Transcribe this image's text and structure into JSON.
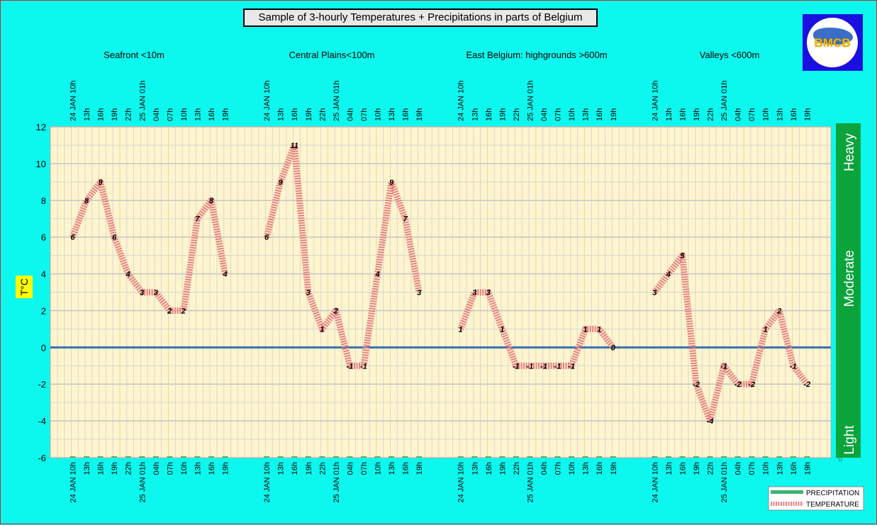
{
  "chart_data": {
    "type": "line",
    "title": "Sample of 3-hourly Temperatures + Precipitations in parts of Belgium",
    "ylabel": "T°C",
    "ylim": [
      -6,
      12
    ],
    "yticks": [
      -6,
      -4,
      -2,
      0,
      2,
      4,
      6,
      8,
      10,
      12
    ],
    "x_tick_labels": [
      "24 JAN 10h",
      "13h",
      "16h",
      "19h",
      "22h",
      "25 JAN 01h",
      "04h",
      "07h",
      "10h",
      "13h",
      "16h",
      "19h"
    ],
    "intensity_labels": [
      "Heavy",
      "Moderate",
      "Light"
    ],
    "intensity_axis_bottom_label": "0",
    "legend": {
      "position": "bottom-right",
      "entries": [
        "PRECIPITATION",
        "TEMPERATURE"
      ]
    },
    "groups": [
      {
        "label": "Seafront <10m",
        "temperature": [
          6,
          8,
          9,
          6,
          4,
          3,
          3,
          2,
          2,
          7,
          8,
          4
        ],
        "precipitation": [
          0,
          0,
          0,
          0,
          0,
          0,
          0,
          0,
          0,
          0,
          0,
          0
        ]
      },
      {
        "label": "Central Plains<100m",
        "temperature": [
          6,
          9,
          11,
          3,
          1,
          2,
          -1,
          -1,
          4,
          9,
          7,
          3
        ],
        "precipitation": [
          0,
          0,
          0,
          0,
          0,
          0,
          0,
          0,
          0,
          0,
          0,
          0
        ]
      },
      {
        "label": "East Belgium:     highgrounds >600m",
        "temperature": [
          1,
          3,
          3,
          1,
          -1,
          -1,
          -1,
          -1,
          -1,
          1,
          1,
          0
        ],
        "precipitation": [
          0,
          0,
          0,
          0,
          0,
          0,
          0,
          0,
          0,
          0,
          0,
          0
        ]
      },
      {
        "label": "Valleys <600m",
        "temperature": [
          3,
          4,
          5,
          -2,
          -4,
          -1,
          -2,
          -2,
          1,
          2,
          -1,
          -2
        ],
        "precipitation": [
          0,
          0,
          0,
          0,
          0,
          0,
          0,
          0,
          0,
          0,
          0,
          0
        ]
      }
    ],
    "colors": {
      "plot_background": "#fff5cc",
      "grid": "#d6d6d6",
      "zero_line": "#3a6fb0",
      "temperature": "#e88080",
      "precipitation": "#3cb371",
      "intensity_bar": "#0aa33c",
      "ylabel_background": "#ffff00"
    }
  },
  "logo": {
    "text": "BMCB",
    "icon": "belgium-map-icon"
  }
}
